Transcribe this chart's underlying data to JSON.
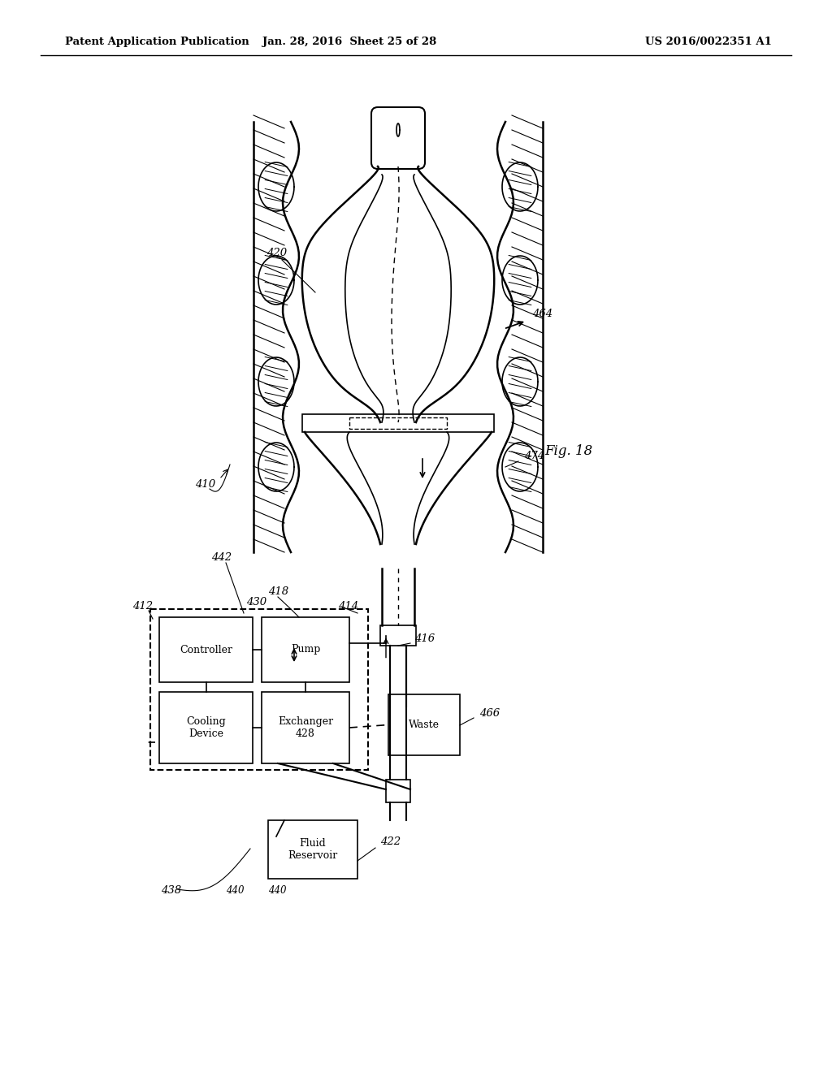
{
  "bg_color": "#ffffff",
  "header_left": "Patent Application Publication",
  "header_mid": "Jan. 28, 2016  Sheet 25 of 28",
  "header_right": "US 2016/0022351 A1"
}
